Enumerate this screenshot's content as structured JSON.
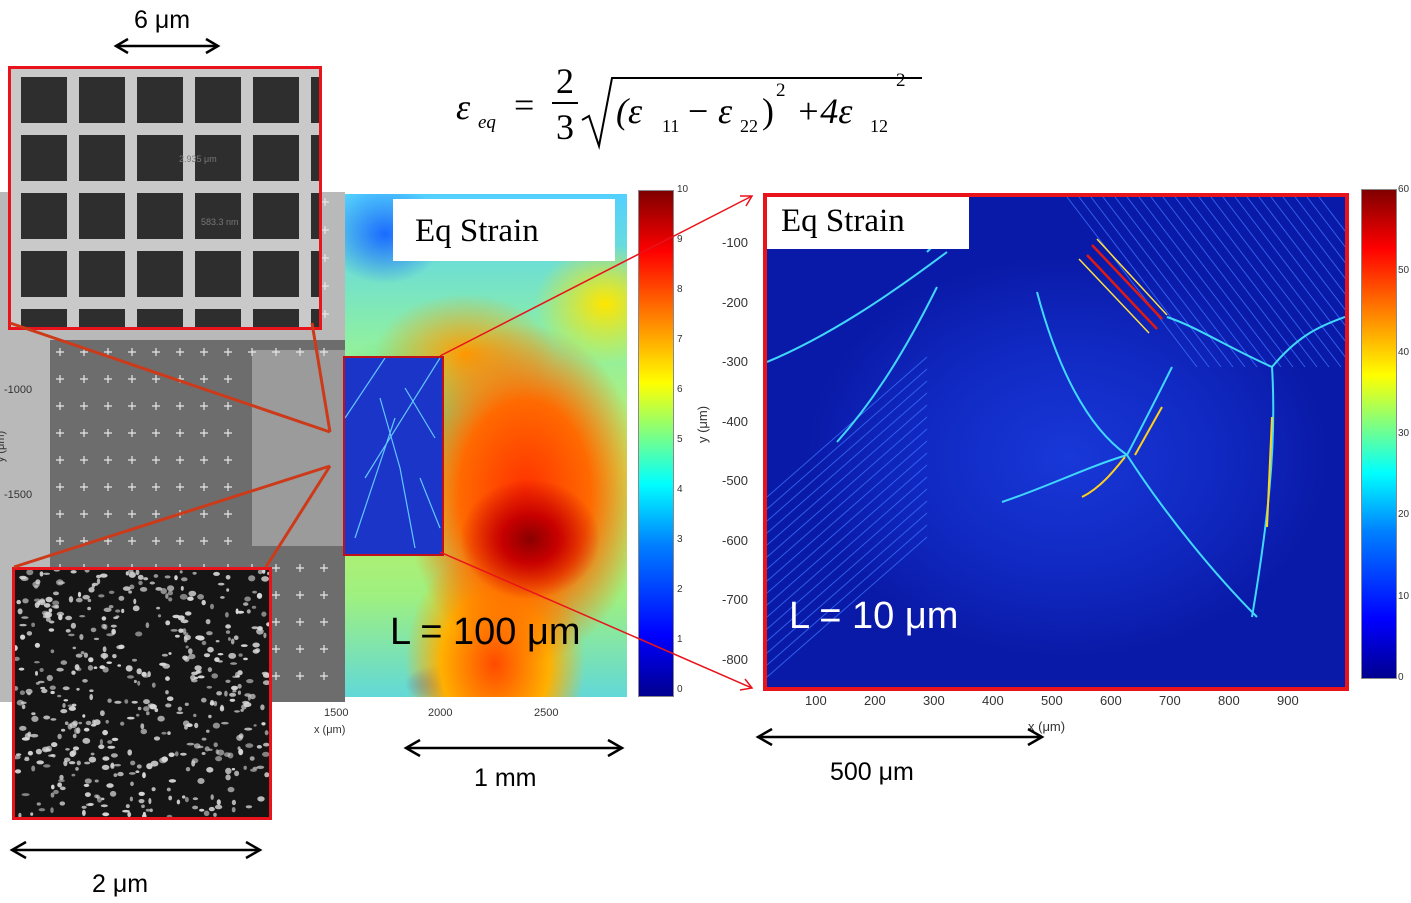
{
  "formula": {
    "lhs": "ε",
    "lhs_sub": "eq",
    "numerator": "2",
    "denominator": "3",
    "open": "(ε",
    "sub1": "11",
    "minus": "−",
    "eps2": "ε",
    "sub2": "22",
    "close": ")",
    "sup1": "2",
    "plus": "+4ε",
    "sub3": "12",
    "sup2": "2"
  },
  "insets": {
    "grid_scale": "6 μm",
    "particles_scale": "2 μm",
    "grid_overlay_1": "2.935 μm",
    "grid_overlay_2": "583.3 nm"
  },
  "left_map": {
    "title": "Eq Strain",
    "resolution_label": "L = 100 μm",
    "scale_label": "1 mm",
    "x_label": "x (μm)",
    "y_label": "y (μm)",
    "x_ticks": [
      "1500",
      "2000",
      "2500"
    ],
    "y_ticks": [
      "-1000",
      "-1500"
    ],
    "colorbar_ticks": [
      "10",
      "9",
      "8",
      "7",
      "6",
      "5",
      "4",
      "3",
      "2",
      "1",
      "0"
    ]
  },
  "right_map": {
    "title": "Eq Strain",
    "resolution_label": "L = 10 μm",
    "scale_label": "500 μm",
    "x_label": "x (μm)",
    "y_label": "y (μm)",
    "x_ticks": [
      "100",
      "200",
      "300",
      "400",
      "500",
      "600",
      "700",
      "800",
      "900"
    ],
    "y_ticks": [
      "-100",
      "-200",
      "-300",
      "-400",
      "-500",
      "-600",
      "-700",
      "-800"
    ],
    "colorbar_ticks": [
      "60",
      "50",
      "40",
      "30",
      "20",
      "10",
      "0"
    ]
  },
  "colors": {
    "highlight_red": "#e8131b",
    "pointer_orange": "#cc3a1a",
    "jet_low": "#00008f",
    "jet_high": "#800000"
  }
}
